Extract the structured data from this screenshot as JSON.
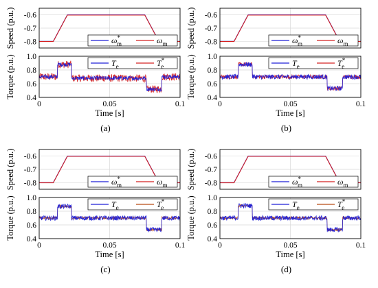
{
  "figure": {
    "panels": [
      {
        "caption": "(a)"
      },
      {
        "caption": "(b)"
      },
      {
        "caption": "(c)"
      },
      {
        "caption": "(d)"
      }
    ]
  },
  "chart_data": [
    {
      "type": "line",
      "panel": "(a)",
      "speed": {
        "ylabel": "Speed (p.u.)",
        "ylim": [
          -0.85,
          -0.55
        ],
        "yticks": [
          "-0.6",
          "-0.7",
          "-0.8"
        ],
        "series": [
          {
            "name": "ω*m",
            "color": "#1f1fd6",
            "x": [
              0,
              0.01,
              0.02,
              0.075,
              0.085,
              0.1
            ],
            "y": [
              -0.8,
              -0.8,
              -0.6,
              -0.6,
              -0.8,
              -0.8
            ]
          },
          {
            "name": "ωm",
            "color": "#d42020",
            "x": [
              0,
              0.01,
              0.02,
              0.075,
              0.085,
              0.1
            ],
            "y": [
              -0.8,
              -0.8,
              -0.6,
              -0.6,
              -0.8,
              -0.8
            ]
          }
        ]
      },
      "torque": {
        "ylabel": "Torque (p.u.)",
        "ylim": [
          0.4,
          1.0
        ],
        "yticks": [
          "1.0",
          "0.8",
          "0.6",
          "0.4"
        ],
        "xlabel": "Time [s]",
        "xlim": [
          0,
          0.1
        ],
        "xticks": [
          "0",
          "0.05",
          "0.1"
        ],
        "segments": [
          [
            0,
            0.013,
            0.7
          ],
          [
            0.013,
            0.023,
            0.88
          ],
          [
            0.023,
            0.076,
            0.68
          ],
          [
            0.076,
            0.087,
            0.52
          ],
          [
            0.087,
            0.1,
            0.7
          ]
        ],
        "series": [
          {
            "name": "Te",
            "color": "#1f1fd6",
            "ripple": 0.03
          },
          {
            "name": "T*e",
            "color": "#d42020",
            "ripple": 0.055
          }
        ]
      }
    },
    {
      "type": "line",
      "panel": "(b)",
      "speed": {
        "ylabel": "Speed (p.u.)",
        "ylim": [
          -0.85,
          -0.55
        ],
        "yticks": [
          "-0.6",
          "-0.7",
          "-0.8"
        ],
        "series": [
          {
            "name": "ω*m",
            "color": "#1f1fd6",
            "x": [
              0,
              0.01,
              0.02,
              0.075,
              0.085,
              0.1
            ],
            "y": [
              -0.8,
              -0.8,
              -0.6,
              -0.6,
              -0.8,
              -0.8
            ]
          },
          {
            "name": "ωm",
            "color": "#d42020",
            "x": [
              0,
              0.01,
              0.02,
              0.075,
              0.085,
              0.1
            ],
            "y": [
              -0.8,
              -0.8,
              -0.6,
              -0.6,
              -0.8,
              -0.8
            ]
          }
        ]
      },
      "torque": {
        "ylabel": "Torque (p.u.)",
        "ylim": [
          0.4,
          1.0
        ],
        "yticks": [
          "1.0",
          "0.8",
          "0.6",
          "0.4"
        ],
        "xlabel": "Time [s]",
        "xlim": [
          0,
          0.1
        ],
        "xticks": [
          "0",
          "0.05",
          "0.1"
        ],
        "segments": [
          [
            0,
            0.013,
            0.7
          ],
          [
            0.013,
            0.023,
            0.88
          ],
          [
            0.023,
            0.076,
            0.7
          ],
          [
            0.076,
            0.087,
            0.53
          ],
          [
            0.087,
            0.1,
            0.7
          ]
        ],
        "series": [
          {
            "name": "Te",
            "color": "#1f1fd6",
            "ripple": 0.035
          },
          {
            "name": "T*e",
            "color": "#d42020",
            "ripple": 0.03
          }
        ]
      }
    },
    {
      "type": "line",
      "panel": "(c)",
      "speed": {
        "ylabel": "Speed (p.u.)",
        "ylim": [
          -0.85,
          -0.55
        ],
        "yticks": [
          "-0.6",
          "-0.7",
          "-0.8"
        ],
        "series": [
          {
            "name": "ω*m",
            "color": "#1f1fd6",
            "x": [
              0,
              0.01,
              0.02,
              0.075,
              0.085,
              0.1
            ],
            "y": [
              -0.8,
              -0.8,
              -0.6,
              -0.6,
              -0.8,
              -0.8
            ]
          },
          {
            "name": "ωm",
            "color": "#d42020",
            "x": [
              0,
              0.01,
              0.02,
              0.075,
              0.085,
              0.1
            ],
            "y": [
              -0.8,
              -0.8,
              -0.6,
              -0.6,
              -0.8,
              -0.8
            ]
          }
        ]
      },
      "torque": {
        "ylabel": "Torque (p.u.)",
        "ylim": [
          0.4,
          1.0
        ],
        "yticks": [
          "1.0",
          "0.8",
          "0.6",
          "0.4"
        ],
        "xlabel": "Time [s]",
        "xlim": [
          0,
          0.1
        ],
        "xticks": [
          "0",
          "0.05",
          "0.1"
        ],
        "segments": [
          [
            0,
            0.013,
            0.7
          ],
          [
            0.013,
            0.023,
            0.87
          ],
          [
            0.023,
            0.076,
            0.7
          ],
          [
            0.076,
            0.087,
            0.53
          ],
          [
            0.087,
            0.1,
            0.7
          ]
        ],
        "series": [
          {
            "name": "Te",
            "color": "#1f1fd6",
            "ripple": 0.035
          },
          {
            "name": "T*e",
            "color": "#b84a14",
            "ripple": 0.02
          }
        ]
      }
    },
    {
      "type": "line",
      "panel": "(d)",
      "speed": {
        "ylabel": "Speed (p.u.)",
        "ylim": [
          -0.85,
          -0.55
        ],
        "yticks": [
          "-0.6",
          "-0.7",
          "-0.8"
        ],
        "series": [
          {
            "name": "ω*m",
            "color": "#1f1fd6",
            "x": [
              0,
              0.01,
              0.02,
              0.075,
              0.085,
              0.1
            ],
            "y": [
              -0.8,
              -0.8,
              -0.6,
              -0.6,
              -0.8,
              -0.8
            ]
          },
          {
            "name": "ωm",
            "color": "#d42020",
            "x": [
              0,
              0.01,
              0.02,
              0.075,
              0.085,
              0.1
            ],
            "y": [
              -0.8,
              -0.8,
              -0.6,
              -0.6,
              -0.8,
              -0.8
            ]
          }
        ]
      },
      "torque": {
        "ylabel": "Torque (p.u.)",
        "ylim": [
          0.4,
          1.0
        ],
        "yticks": [
          "1.0",
          "0.8",
          "0.6",
          "0.4"
        ],
        "xlabel": "Time [s]",
        "xlim": [
          0,
          0.1
        ],
        "xticks": [
          "0",
          "0.05",
          "0.1"
        ],
        "segments": [
          [
            0,
            0.013,
            0.7
          ],
          [
            0.013,
            0.023,
            0.88
          ],
          [
            0.023,
            0.076,
            0.7
          ],
          [
            0.076,
            0.087,
            0.53
          ],
          [
            0.087,
            0.1,
            0.7
          ]
        ],
        "series": [
          {
            "name": "Te",
            "color": "#1f1fd6",
            "ripple": 0.035
          },
          {
            "name": "T*e",
            "color": "#b84a14",
            "ripple": 0.02
          }
        ]
      }
    }
  ]
}
